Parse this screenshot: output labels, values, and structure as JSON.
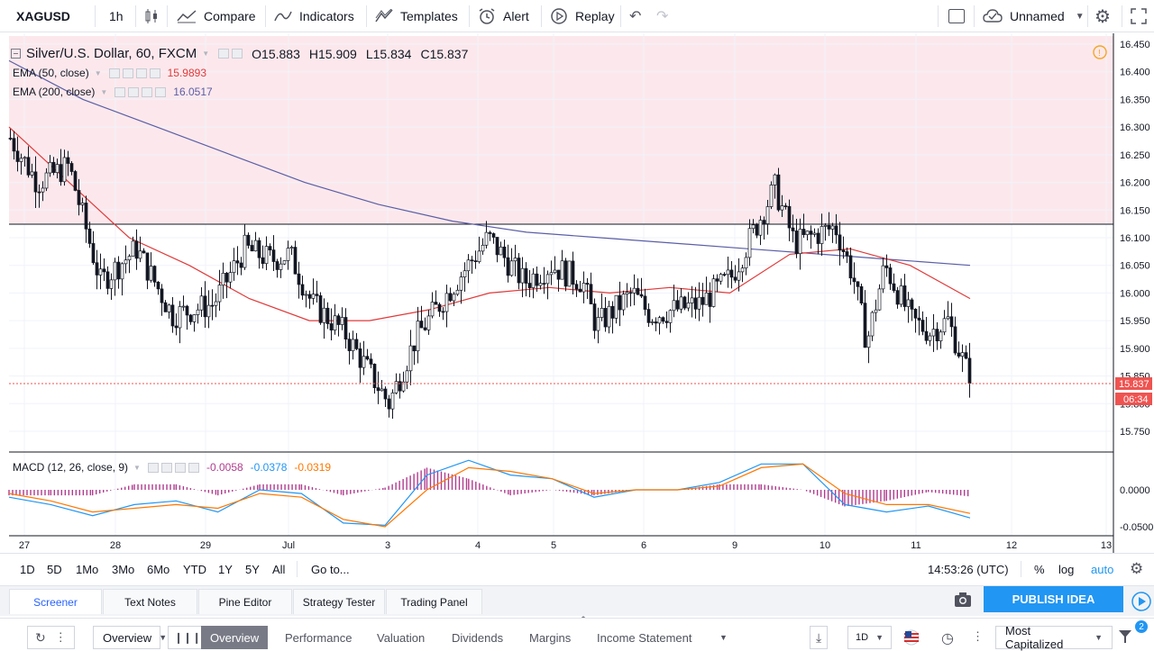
{
  "toolbar": {
    "symbol": "XAGUSD",
    "interval": "1h",
    "compare": "Compare",
    "indicators": "Indicators",
    "templates": "Templates",
    "alert": "Alert",
    "replay": "Replay",
    "layout_name": "Unnamed"
  },
  "legend": {
    "title": "Silver/U.S. Dollar, 60, FXCM",
    "o_label": "O",
    "o_value": "15.883",
    "h_label": "H",
    "h_value": "15.909",
    "l_label": "L",
    "l_value": "15.834",
    "c_label": "C",
    "c_value": "15.837",
    "ema50_label": "EMA (50, close)",
    "ema50_value": "15.9893",
    "ema200_label": "EMA (200, close)",
    "ema200_value": "16.0517",
    "macd_label": "MACD (12, 26, close, 9)",
    "macd_hist": "-0.0058",
    "macd_line": "-0.0378",
    "macd_signal": "-0.0319"
  },
  "price_tag": {
    "price": "15.837",
    "countdown": "06:34"
  },
  "colors": {
    "up": "#ffffff",
    "down": "#131722",
    "ema50": "#e03a3a",
    "ema200": "#5b5ea6",
    "macd": "#2196f3",
    "signal": "#ff7700",
    "hist": "#b03c8f",
    "accent": "#2196f3",
    "zone": "#fce8ec",
    "price": "#ef5350"
  },
  "chart_data": [
    {
      "type": "candlestick",
      "title": "Silver/U.S. Dollar, 60, FXCM",
      "x_ticks": [
        "27",
        "28",
        "29",
        "Jul",
        "3",
        "4",
        "5",
        "6",
        "9",
        "10",
        "11",
        "12",
        "13"
      ],
      "price_ticks": [
        "16.450",
        "16.400",
        "16.350",
        "16.300",
        "16.250",
        "16.200",
        "16.150",
        "16.100",
        "16.050",
        "16.000",
        "15.950",
        "15.900",
        "15.850",
        "15.800",
        "15.750"
      ],
      "ylim": [
        15.72,
        16.47
      ],
      "resistance_level": 16.123,
      "last_price": 15.837,
      "anchors": [
        {
          "x": "27",
          "close": 16.28
        },
        {
          "x": "27.3",
          "close": 16.2
        },
        {
          "x": "27.7",
          "close": 16.23
        },
        {
          "x": "28",
          "close": 16.02
        },
        {
          "x": "28.3",
          "close": 16.08
        },
        {
          "x": "28.7",
          "close": 15.96
        },
        {
          "x": "29",
          "close": 15.98
        },
        {
          "x": "29.3",
          "close": 16.08
        },
        {
          "x": "29.7",
          "close": 16.06
        },
        {
          "x": "Jul",
          "close": 16.07
        },
        {
          "x": "Jul.3",
          "close": 15.98
        },
        {
          "x": "Jul.6",
          "close": 15.93
        },
        {
          "x": "3",
          "close": 15.8
        },
        {
          "x": "3.3",
          "close": 15.92
        },
        {
          "x": "3.7",
          "close": 16.0
        },
        {
          "x": "4",
          "close": 16.1
        },
        {
          "x": "4.3",
          "close": 16.02
        },
        {
          "x": "4.7",
          "close": 16.05
        },
        {
          "x": "5",
          "close": 16.02
        },
        {
          "x": "5.3",
          "close": 15.94
        },
        {
          "x": "5.7",
          "close": 16.0
        },
        {
          "x": "6",
          "close": 15.96
        },
        {
          "x": "6.5",
          "close": 15.98
        },
        {
          "x": "9",
          "close": 16.03
        },
        {
          "x": "9.4",
          "close": 16.19
        },
        {
          "x": "9.7",
          "close": 16.09
        },
        {
          "x": "10",
          "close": 16.12
        },
        {
          "x": "10.3",
          "close": 16.03
        },
        {
          "x": "10.5",
          "close": 15.91
        },
        {
          "x": "10.7",
          "close": 16.05
        },
        {
          "x": "11",
          "close": 15.95
        },
        {
          "x": "11.3",
          "close": 15.93
        },
        {
          "x": "11.5",
          "close": 15.95
        },
        {
          "x": "11.58",
          "close": 15.837
        }
      ],
      "ema50": [
        16.3,
        16.2,
        16.1,
        16.05,
        15.99,
        15.95,
        15.95,
        15.97,
        16.0,
        16.01,
        16.0,
        16.01,
        16.0,
        16.07,
        16.08,
        16.05,
        15.99
      ],
      "ema200": [
        16.42,
        16.35,
        16.3,
        16.25,
        16.2,
        16.16,
        16.13,
        16.11,
        16.1,
        16.09,
        16.08,
        16.07,
        16.06,
        16.05
      ],
      "series": [
        {
          "name": "EMA (50, close)",
          "last": 15.9893
        },
        {
          "name": "EMA (200, close)",
          "last": 16.0517
        }
      ]
    },
    {
      "type": "line",
      "title": "MACD (12, 26, close, 9)",
      "price_ticks": [
        "0.0000",
        "-0.0500"
      ],
      "ylim": [
        -0.06,
        0.05
      ],
      "macd": [
        -0.01,
        -0.02,
        -0.035,
        -0.02,
        -0.015,
        -0.03,
        0.0,
        -0.005,
        -0.045,
        -0.048,
        0.02,
        0.04,
        0.02,
        0.015,
        -0.01,
        0.0,
        0.0,
        0.01,
        0.035,
        0.035,
        -0.02,
        -0.03,
        -0.022,
        -0.038
      ],
      "signal": [
        -0.005,
        -0.015,
        -0.03,
        -0.025,
        -0.02,
        -0.025,
        -0.005,
        -0.01,
        -0.04,
        -0.05,
        0.0,
        0.03,
        0.025,
        0.015,
        -0.005,
        0.0,
        0.0,
        0.005,
        0.03,
        0.035,
        -0.005,
        -0.02,
        -0.02,
        -0.032
      ]
    }
  ],
  "range": {
    "buttons": [
      "1D",
      "5D",
      "1Mo",
      "3Mo",
      "6Mo",
      "YTD",
      "1Y",
      "5Y",
      "All"
    ],
    "goto": "Go to...",
    "time": "14:53:26 (UTC)",
    "pct": "%",
    "log": "log",
    "auto": "auto"
  },
  "panels": {
    "tabs": [
      "Screener",
      "Text Notes",
      "Pine Editor",
      "Strategy Tester",
      "Trading Panel"
    ],
    "publish": "PUBLISH IDEA"
  },
  "screener": {
    "view": "Overview",
    "tabs": [
      "Overview",
      "Performance",
      "Valuation",
      "Dividends",
      "Margins",
      "Income Statement"
    ],
    "interval": "1D",
    "sort": "Most Capitalized",
    "badge": "2"
  }
}
